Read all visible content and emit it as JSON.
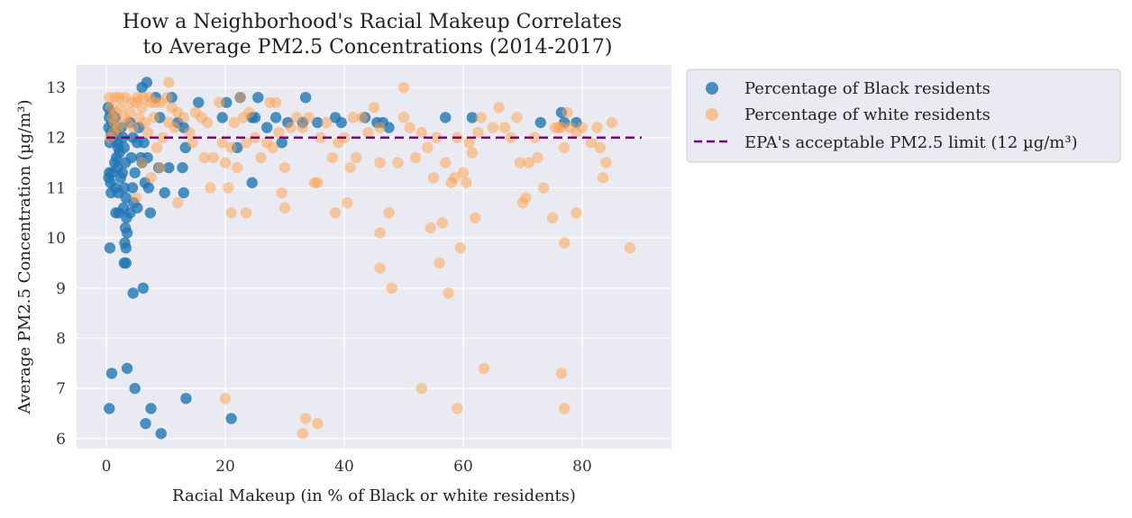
{
  "chart_data": {
    "type": "scatter",
    "title_lines": [
      "How a Neighborhood's Racial Makeup Correlates",
      "to Average PM2.5 Concentrations (2014-2017)"
    ],
    "xlabel": "Racial Makeup (in % of Black or white residents)",
    "ylabel": "Average PM2.5 Concentration (µg/m³)",
    "xlim": [
      -5,
      95
    ],
    "ylim": [
      5.8,
      13.45
    ],
    "xticks": [
      0,
      20,
      40,
      60,
      80
    ],
    "yticks": [
      6,
      7,
      8,
      9,
      10,
      11,
      12,
      13
    ],
    "grid": true,
    "legend_position": "outside-right",
    "colors": {
      "black": "#1f77b4",
      "white": "#ff9f4a",
      "limit": "#800080",
      "plot_bg": "#eaeaf2",
      "grid": "#ffffff"
    },
    "reference_line": {
      "name": "EPA's acceptable PM2.5 limit (12 µg/m³)",
      "y": 12,
      "x_range": [
        0,
        90
      ],
      "style": "dashed"
    },
    "series": [
      {
        "name": "Percentage of Black residents",
        "color": "#1f77b4",
        "points": [
          [
            0.3,
            12.6
          ],
          [
            0.5,
            12.4
          ],
          [
            0.7,
            12.5
          ],
          [
            0.4,
            12.2
          ],
          [
            0.8,
            12.1
          ],
          [
            0.6,
            11.9
          ],
          [
            1.0,
            12.3
          ],
          [
            1.2,
            12.0
          ],
          [
            0.5,
            11.3
          ],
          [
            0.4,
            11.2
          ],
          [
            0.7,
            11.1
          ],
          [
            1.0,
            11.3
          ],
          [
            0.8,
            10.9
          ],
          [
            0.6,
            9.8
          ],
          [
            0.9,
            7.3
          ],
          [
            0.5,
            6.6
          ],
          [
            1.5,
            12.4
          ],
          [
            1.6,
            12.1
          ],
          [
            1.8,
            11.9
          ],
          [
            2.0,
            11.8
          ],
          [
            1.7,
            11.6
          ],
          [
            1.4,
            11.5
          ],
          [
            1.9,
            11.4
          ],
          [
            2.2,
            11.7
          ],
          [
            1.5,
            11.0
          ],
          [
            2.0,
            10.9
          ],
          [
            2.4,
            11.2
          ],
          [
            1.6,
            10.5
          ],
          [
            2.1,
            10.5
          ],
          [
            2.5,
            12.2
          ],
          [
            2.8,
            12.0
          ],
          [
            3.0,
            11.8
          ],
          [
            3.2,
            11.5
          ],
          [
            2.7,
            11.3
          ],
          [
            3.0,
            11.0
          ],
          [
            3.3,
            10.8
          ],
          [
            2.9,
            10.6
          ],
          [
            3.4,
            10.4
          ],
          [
            3.2,
            10.2
          ],
          [
            3.5,
            10.1
          ],
          [
            3.1,
            9.9
          ],
          [
            3.3,
            9.8
          ],
          [
            3.0,
            9.5
          ],
          [
            3.3,
            9.5
          ],
          [
            3.5,
            7.4
          ],
          [
            4.0,
            12.3
          ],
          [
            4.5,
            12.0
          ],
          [
            4.2,
            11.6
          ],
          [
            4.8,
            11.3
          ],
          [
            4.4,
            11.0
          ],
          [
            4.6,
            10.7
          ],
          [
            4.0,
            10.5
          ],
          [
            5.2,
            10.6
          ],
          [
            4.5,
            8.9
          ],
          [
            4.8,
            7.0
          ],
          [
            5.5,
            12.2
          ],
          [
            5.2,
            11.9
          ],
          [
            5.8,
            11.6
          ],
          [
            6.0,
            11.5
          ],
          [
            6.3,
            11.9
          ],
          [
            6.5,
            11.1
          ],
          [
            6.9,
            11.6
          ],
          [
            7.1,
            11.0
          ],
          [
            7.4,
            10.5
          ],
          [
            6.2,
            9.0
          ],
          [
            6.6,
            6.3
          ],
          [
            7.5,
            6.6
          ],
          [
            6.0,
            13.0
          ],
          [
            6.8,
            13.1
          ],
          [
            8.3,
            12.8
          ],
          [
            9.0,
            12.4
          ],
          [
            8.8,
            11.4
          ],
          [
            9.8,
            10.9
          ],
          [
            10.5,
            11.4
          ],
          [
            9.2,
            6.1
          ],
          [
            11.0,
            12.8
          ],
          [
            12.0,
            12.3
          ],
          [
            13.0,
            12.2
          ],
          [
            12.8,
            11.4
          ],
          [
            13.3,
            11.8
          ],
          [
            13.0,
            10.9
          ],
          [
            13.4,
            6.8
          ],
          [
            15.5,
            12.7
          ],
          [
            19.5,
            12.4
          ],
          [
            20.2,
            12.7
          ],
          [
            22.5,
            12.8
          ],
          [
            24.5,
            12.4
          ],
          [
            25.0,
            12.4
          ],
          [
            25.5,
            12.8
          ],
          [
            27.0,
            12.2
          ],
          [
            28.5,
            12.4
          ],
          [
            29.5,
            11.9
          ],
          [
            30.5,
            12.3
          ],
          [
            22.0,
            11.8
          ],
          [
            24.5,
            11.1
          ],
          [
            21.0,
            6.4
          ],
          [
            33.0,
            12.3
          ],
          [
            33.5,
            12.8
          ],
          [
            35.5,
            12.3
          ],
          [
            38.5,
            12.4
          ],
          [
            39.5,
            12.3
          ],
          [
            43.5,
            12.4
          ],
          [
            45.5,
            12.3
          ],
          [
            46.5,
            12.3
          ],
          [
            47.5,
            12.2
          ],
          [
            57.0,
            12.4
          ],
          [
            61.5,
            12.4
          ],
          [
            73.0,
            12.3
          ],
          [
            76.5,
            12.5
          ],
          [
            77.0,
            12.3
          ],
          [
            79.0,
            12.3
          ]
        ]
      },
      {
        "name": "Percentage of white residents",
        "color": "#ff9f4a",
        "points": [
          [
            0.5,
            12.8
          ],
          [
            0.8,
            12.6
          ],
          [
            1.0,
            12.4
          ],
          [
            1.3,
            12.3
          ],
          [
            1.6,
            12.5
          ],
          [
            2.0,
            12.2
          ],
          [
            1.2,
            12.1
          ],
          [
            0.6,
            12.0
          ],
          [
            2.5,
            12.6
          ],
          [
            3.0,
            12.4
          ],
          [
            3.5,
            12.3
          ],
          [
            4.0,
            12.5
          ],
          [
            4.5,
            12.2
          ],
          [
            5.0,
            12.7
          ],
          [
            5.5,
            12.4
          ],
          [
            6.0,
            12.6
          ],
          [
            6.5,
            12.3
          ],
          [
            7.0,
            12.1
          ],
          [
            7.5,
            12.7
          ],
          [
            8.0,
            12.4
          ],
          [
            1.5,
            12.8
          ],
          [
            2.2,
            12.8
          ],
          [
            3.2,
            12.8
          ],
          [
            4.2,
            12.7
          ],
          [
            5.2,
            12.8
          ],
          [
            6.2,
            12.8
          ],
          [
            7.2,
            12.8
          ],
          [
            8.2,
            12.7
          ],
          [
            9.2,
            12.7
          ],
          [
            10.2,
            12.8
          ],
          [
            10.5,
            13.1
          ],
          [
            11.0,
            12.6
          ],
          [
            12.0,
            12.5
          ],
          [
            8.5,
            11.8
          ],
          [
            9.0,
            11.4
          ],
          [
            7.5,
            11.2
          ],
          [
            5.0,
            10.8
          ],
          [
            6.0,
            11.5
          ],
          [
            9.5,
            12.0
          ],
          [
            10.5,
            12.3
          ],
          [
            11.5,
            12.2
          ],
          [
            12.0,
            10.7
          ],
          [
            13.0,
            12.4
          ],
          [
            14.0,
            12.1
          ],
          [
            14.5,
            11.9
          ],
          [
            15.0,
            12.5
          ],
          [
            16.0,
            12.4
          ],
          [
            16.5,
            11.6
          ],
          [
            17.0,
            12.3
          ],
          [
            17.5,
            11.0
          ],
          [
            18.0,
            11.6
          ],
          [
            19.0,
            12.7
          ],
          [
            19.5,
            11.9
          ],
          [
            20.0,
            11.5
          ],
          [
            20.5,
            11.0
          ],
          [
            21.0,
            11.8
          ],
          [
            21.5,
            12.3
          ],
          [
            22.0,
            11.4
          ],
          [
            22.5,
            12.8
          ],
          [
            23.0,
            12.4
          ],
          [
            23.5,
            11.9
          ],
          [
            24.0,
            12.5
          ],
          [
            25.0,
            12.0
          ],
          [
            26.0,
            11.6
          ],
          [
            27.0,
            11.9
          ],
          [
            27.5,
            12.7
          ],
          [
            28.0,
            11.8
          ],
          [
            28.5,
            12.7
          ],
          [
            29.0,
            12.1
          ],
          [
            29.5,
            10.9
          ],
          [
            30.0,
            11.4
          ],
          [
            30.0,
            10.6
          ],
          [
            31.0,
            12.2
          ],
          [
            32.0,
            12.4
          ],
          [
            20.0,
            6.8
          ],
          [
            21.0,
            10.5
          ],
          [
            23.5,
            10.5
          ],
          [
            33.0,
            12.2
          ],
          [
            34.0,
            12.4
          ],
          [
            35.0,
            11.1
          ],
          [
            35.5,
            11.1
          ],
          [
            36.0,
            12.0
          ],
          [
            37.0,
            12.3
          ],
          [
            38.0,
            11.6
          ],
          [
            38.5,
            10.5
          ],
          [
            39.0,
            11.9
          ],
          [
            40.0,
            12.0
          ],
          [
            40.5,
            10.7
          ],
          [
            41.0,
            11.4
          ],
          [
            41.5,
            12.4
          ],
          [
            42.0,
            11.6
          ],
          [
            43.0,
            12.4
          ],
          [
            44.0,
            12.1
          ],
          [
            45.0,
            12.6
          ],
          [
            46.0,
            12.2
          ],
          [
            46.0,
            11.5
          ],
          [
            33.0,
            6.1
          ],
          [
            33.5,
            6.4
          ],
          [
            35.5,
            6.3
          ],
          [
            46.0,
            10.1
          ],
          [
            46.0,
            9.4
          ],
          [
            47.5,
            10.5
          ],
          [
            48.0,
            9.0
          ],
          [
            49.0,
            11.5
          ],
          [
            50.0,
            12.4
          ],
          [
            50.0,
            13.0
          ],
          [
            51.0,
            12.2
          ],
          [
            52.0,
            11.6
          ],
          [
            53.0,
            12.1
          ],
          [
            54.0,
            11.8
          ],
          [
            54.5,
            10.2
          ],
          [
            55.0,
            11.2
          ],
          [
            55.5,
            12.0
          ],
          [
            56.0,
            9.5
          ],
          [
            56.5,
            10.3
          ],
          [
            57.0,
            11.5
          ],
          [
            57.5,
            8.9
          ],
          [
            58.0,
            11.1
          ],
          [
            58.5,
            11.2
          ],
          [
            59.0,
            12.0
          ],
          [
            59.5,
            9.8
          ],
          [
            60.0,
            11.3
          ],
          [
            60.5,
            11.1
          ],
          [
            61.0,
            11.9
          ],
          [
            61.5,
            11.7
          ],
          [
            62.0,
            10.4
          ],
          [
            62.5,
            12.1
          ],
          [
            63.0,
            12.4
          ],
          [
            53.0,
            7.0
          ],
          [
            59.0,
            6.6
          ],
          [
            63.5,
            7.4
          ],
          [
            65.0,
            12.2
          ],
          [
            66.0,
            12.6
          ],
          [
            67.0,
            12.2
          ],
          [
            68.0,
            12.0
          ],
          [
            69.0,
            12.4
          ],
          [
            69.5,
            11.5
          ],
          [
            70.0,
            10.7
          ],
          [
            70.5,
            10.8
          ],
          [
            71.0,
            11.5
          ],
          [
            72.0,
            12.0
          ],
          [
            72.5,
            11.6
          ],
          [
            73.5,
            11.0
          ],
          [
            75.0,
            10.4
          ],
          [
            75.5,
            12.2
          ],
          [
            76.0,
            12.2
          ],
          [
            76.5,
            12.2
          ],
          [
            77.0,
            11.8
          ],
          [
            77.0,
            9.9
          ],
          [
            77.5,
            12.5
          ],
          [
            78.0,
            12.2
          ],
          [
            79.0,
            12.1
          ],
          [
            79.0,
            10.5
          ],
          [
            80.0,
            12.2
          ],
          [
            81.5,
            11.9
          ],
          [
            82.5,
            12.2
          ],
          [
            83.0,
            11.8
          ],
          [
            83.5,
            11.2
          ],
          [
            84.0,
            11.5
          ],
          [
            85.0,
            12.3
          ],
          [
            88.0,
            9.8
          ],
          [
            76.5,
            7.3
          ],
          [
            77.0,
            6.6
          ]
        ]
      }
    ]
  }
}
